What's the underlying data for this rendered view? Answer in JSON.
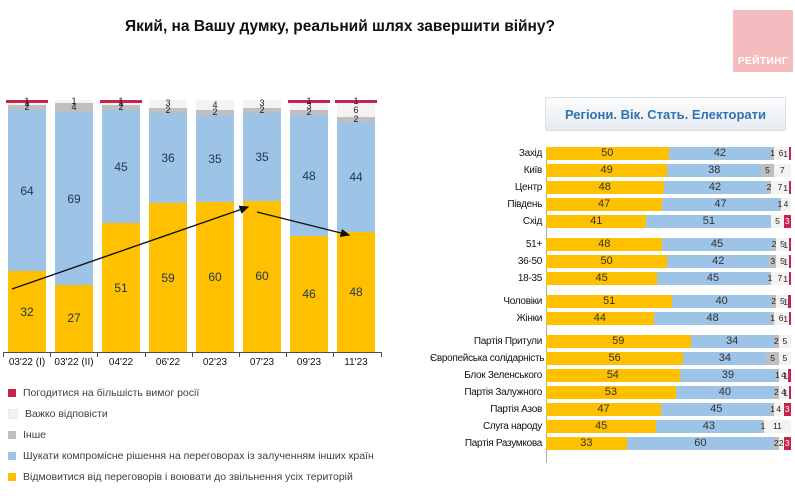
{
  "title": "Який, на Вашу думку, реальний шлях завершити війну?",
  "logo_text": "РЕЙТИНГ",
  "right_header": "Регіони. Вік. Стать. Електорати",
  "colors": {
    "yellow": "#FFC000",
    "blue": "#9DC3E6",
    "gray": "#BFBFBF",
    "white": "#F3F3F3",
    "red": "#C8234E",
    "logo_bg": "#F4BCBE",
    "header_text": "#2E74B5"
  },
  "legend": [
    {
      "key": "red",
      "label": "Погодитися на більшість вимог росії"
    },
    {
      "key": "white",
      "label": "Важко відповісти"
    },
    {
      "key": "gray",
      "label": "Інше"
    },
    {
      "key": "blue",
      "label": "Шукати компромісне рішення на переговорах із залученням інших країн"
    },
    {
      "key": "yellow",
      "label": "Відмовитися від переговорів і воювати до звільнення усіх територій"
    }
  ],
  "chart_data": [
    {
      "type": "bar",
      "subtype": "stacked-column-100",
      "categories": [
        "03'22 (I)",
        "03'22 (II)",
        "04'22",
        "06'22",
        "02'23",
        "07'23",
        "09'23",
        "11'23"
      ],
      "series": [
        {
          "name": "Відмовитися від переговорів і воювати до звільнення усіх територій",
          "key": "yellow",
          "values": [
            32,
            27,
            51,
            59,
            60,
            60,
            46,
            48
          ]
        },
        {
          "name": "Шукати компромісне рішення на переговорах із залученням інших країн",
          "key": "blue",
          "values": [
            64,
            69,
            45,
            36,
            35,
            35,
            48,
            44
          ]
        },
        {
          "name": "Інше",
          "key": "gray",
          "values": [
            2,
            4,
            2,
            2,
            2,
            2,
            2,
            2
          ]
        },
        {
          "name": "Важко відповісти",
          "key": "white",
          "values": [
            1,
            1,
            1,
            3,
            4,
            3,
            3,
            6
          ]
        },
        {
          "name": "Погодитися на більшість вимог росії",
          "key": "red",
          "values": [
            1,
            0,
            1,
            0,
            0,
            0,
            1,
            1
          ]
        }
      ],
      "annotations": {
        "trend_arrows": [
          {
            "from": "03'22 (I)",
            "to": "07'23",
            "direction": "up"
          },
          {
            "from": "07'23",
            "to": "11'23",
            "direction": "down"
          }
        ]
      }
    },
    {
      "type": "bar",
      "subtype": "stacked-bar-horizontal-100",
      "title": "Регіони. Вік. Стать. Електорати",
      "series_keys": [
        "yellow",
        "blue",
        "gray",
        "white",
        "red"
      ],
      "groups": [
        {
          "name": "regions",
          "rows": [
            {
              "label": "Захід",
              "values": [
                50,
                42,
                1,
                6,
                1
              ]
            },
            {
              "label": "Київ",
              "values": [
                49,
                38,
                5,
                7,
                0
              ]
            },
            {
              "label": "Центр",
              "values": [
                48,
                42,
                2,
                7,
                1
              ]
            },
            {
              "label": "Південь",
              "values": [
                47,
                47,
                1,
                4,
                0
              ]
            },
            {
              "label": "Схід",
              "values": [
                41,
                51,
                0,
                5,
                3
              ]
            }
          ]
        },
        {
          "name": "age",
          "rows": [
            {
              "label": "51+",
              "values": [
                48,
                45,
                2,
                5,
                1
              ]
            },
            {
              "label": "36-50",
              "values": [
                50,
                42,
                3,
                5,
                1
              ]
            },
            {
              "label": "18-35",
              "values": [
                45,
                45,
                1,
                7,
                1
              ]
            }
          ]
        },
        {
          "name": "gender",
          "rows": [
            {
              "label": "Чоловіки",
              "values": [
                51,
                40,
                2,
                5,
                1
              ]
            },
            {
              "label": "Жінки",
              "values": [
                44,
                48,
                1,
                6,
                1
              ]
            }
          ]
        },
        {
          "name": "electorates",
          "rows": [
            {
              "label": "Партія Притули",
              "values": [
                59,
                34,
                2,
                5,
                0
              ]
            },
            {
              "label": "Європейська солідарність",
              "values": [
                56,
                34,
                5,
                5,
                0
              ]
            },
            {
              "label": "Блок Зеленського",
              "values": [
                54,
                39,
                1,
                4,
                1
              ]
            },
            {
              "label": "Партія Залужного",
              "values": [
                53,
                40,
                2,
                4,
                1
              ]
            },
            {
              "label": "Партія Азов",
              "values": [
                47,
                45,
                1,
                4,
                3
              ]
            },
            {
              "label": "Слуга народу",
              "values": [
                45,
                43,
                1,
                11,
                0
              ]
            },
            {
              "label": "Партія Разумкова",
              "values": [
                33,
                60,
                2,
                2,
                3
              ]
            }
          ]
        }
      ]
    }
  ]
}
